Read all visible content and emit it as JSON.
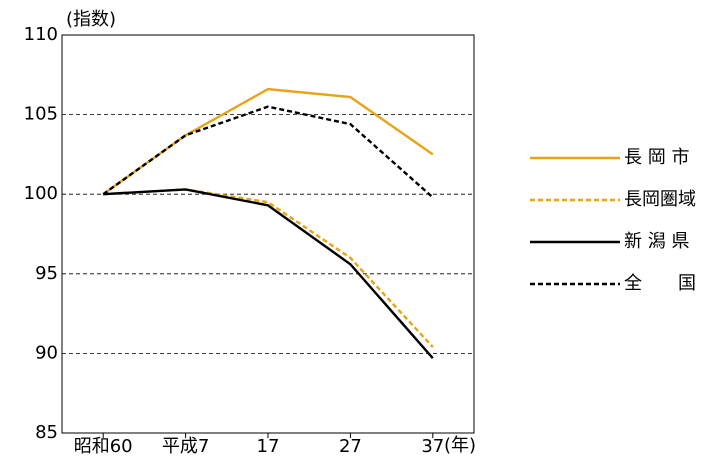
{
  "chart_data": {
    "type": "line",
    "y_label": "(指数)",
    "x_label": "(年)",
    "categories": [
      "昭和60",
      "平成7",
      "17",
      "27",
      "37"
    ],
    "series": [
      {
        "name": "長 岡 市",
        "color": "#e8a317",
        "dashed": false,
        "values": [
          100,
          103.7,
          106.6,
          106.1,
          102.5
        ]
      },
      {
        "name": "長岡圏域",
        "color": "#e8a317",
        "dashed": true,
        "values": [
          100,
          100.3,
          99.5,
          96.0,
          90.4
        ]
      },
      {
        "name": "新 潟 県",
        "color": "#000000",
        "dashed": false,
        "values": [
          100,
          100.3,
          99.3,
          95.6,
          89.7
        ]
      },
      {
        "name": "全　　国",
        "color": "#000000",
        "dashed": true,
        "values": [
          100,
          103.7,
          105.5,
          104.4,
          99.8
        ]
      }
    ],
    "ylim": [
      85,
      110
    ],
    "yticks": [
      85,
      90,
      95,
      100,
      105,
      110
    ],
    "grid": true,
    "legend": "right"
  }
}
